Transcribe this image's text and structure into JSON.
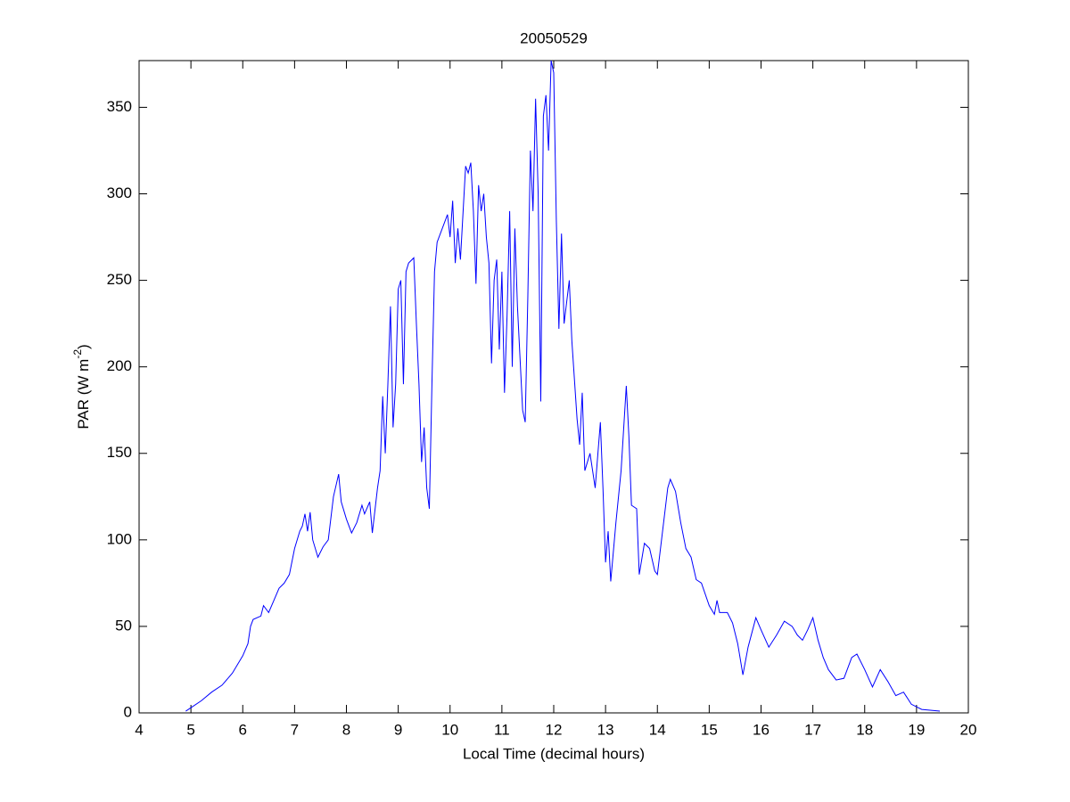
{
  "chart_data": {
    "type": "line",
    "title": "20050529",
    "x_label": "Local Time (decimal hours)",
    "y_label": [
      "PAR (W m",
      "-2",
      ")"
    ],
    "x": [
      4.9,
      5.0,
      5.2,
      5.4,
      5.6,
      5.8,
      6.0,
      6.1,
      6.15,
      6.2,
      6.35,
      6.4,
      6.5,
      6.6,
      6.7,
      6.8,
      6.9,
      7.0,
      7.1,
      7.15,
      7.2,
      7.25,
      7.3,
      7.35,
      7.45,
      7.55,
      7.65,
      7.75,
      7.85,
      7.9,
      8.0,
      8.1,
      8.2,
      8.3,
      8.35,
      8.45,
      8.5,
      8.6,
      8.65,
      8.7,
      8.75,
      8.8,
      8.85,
      8.9,
      8.95,
      9.0,
      9.05,
      9.1,
      9.15,
      9.2,
      9.3,
      9.35,
      9.4,
      9.45,
      9.5,
      9.55,
      9.6,
      9.65,
      9.7,
      9.75,
      9.85,
      9.95,
      10.0,
      10.05,
      10.1,
      10.15,
      10.2,
      10.3,
      10.35,
      10.4,
      10.45,
      10.5,
      10.55,
      10.6,
      10.65,
      10.7,
      10.75,
      10.8,
      10.85,
      10.9,
      10.95,
      11.0,
      11.05,
      11.1,
      11.15,
      11.2,
      11.25,
      11.3,
      11.4,
      11.45,
      11.5,
      11.55,
      11.6,
      11.65,
      11.7,
      11.75,
      11.8,
      11.85,
      11.9,
      11.95,
      12.0,
      12.05,
      12.1,
      12.15,
      12.2,
      12.3,
      12.35,
      12.45,
      12.5,
      12.55,
      12.6,
      12.7,
      12.8,
      12.9,
      12.95,
      13.0,
      13.05,
      13.1,
      13.2,
      13.3,
      13.4,
      13.45,
      13.5,
      13.6,
      13.65,
      13.75,
      13.85,
      13.95,
      14.0,
      14.1,
      14.2,
      14.25,
      14.35,
      14.45,
      14.55,
      14.65,
      14.75,
      14.85,
      15.0,
      15.1,
      15.15,
      15.2,
      15.35,
      15.45,
      15.55,
      15.65,
      15.75,
      15.9,
      16.0,
      16.15,
      16.3,
      16.45,
      16.6,
      16.7,
      16.8,
      16.9,
      17.0,
      17.1,
      17.2,
      17.3,
      17.45,
      17.6,
      17.75,
      17.85,
      18.0,
      18.15,
      18.3,
      18.45,
      18.6,
      18.75,
      18.9,
      19.1,
      19.45
    ],
    "series": [
      {
        "color": "#0000ff",
        "values": [
          1,
          3,
          7,
          12,
          16,
          23,
          33,
          40,
          50,
          54,
          56,
          62,
          58,
          65,
          72,
          75,
          80,
          95,
          105,
          108,
          115,
          105,
          116,
          100,
          90,
          96,
          100,
          125,
          138,
          122,
          112,
          104,
          110,
          120,
          115,
          122,
          104,
          130,
          140,
          183,
          150,
          190,
          235,
          165,
          190,
          245,
          250,
          190,
          255,
          260,
          263,
          225,
          190,
          145,
          165,
          130,
          118,
          190,
          255,
          272,
          280,
          288,
          275,
          296,
          260,
          280,
          262,
          316,
          312,
          318,
          290,
          248,
          305,
          290,
          300,
          275,
          260,
          202,
          250,
          262,
          210,
          255,
          185,
          230,
          290,
          200,
          280,
          235,
          175,
          168,
          240,
          325,
          290,
          355,
          300,
          180,
          345,
          357,
          325,
          377,
          370,
          285,
          222,
          277,
          225,
          250,
          215,
          170,
          155,
          185,
          140,
          150,
          130,
          168,
          130,
          87,
          105,
          76,
          110,
          140,
          189,
          160,
          120,
          118,
          80,
          98,
          95,
          82,
          80,
          105,
          130,
          135,
          128,
          110,
          95,
          90,
          77,
          75,
          62,
          57,
          65,
          58,
          58,
          52,
          40,
          22,
          38,
          55,
          48,
          38,
          45,
          53,
          50,
          45,
          42,
          48,
          55,
          42,
          32,
          25,
          19,
          20,
          32,
          34,
          25,
          15,
          25,
          18,
          10,
          12,
          5,
          2,
          1
        ]
      }
    ],
    "xlim": [
      4,
      20
    ],
    "xticks": [
      4,
      5,
      6,
      7,
      8,
      9,
      10,
      11,
      12,
      13,
      14,
      15,
      16,
      17,
      18,
      19,
      20
    ],
    "ylim": [
      0,
      377
    ],
    "yticks": [
      0,
      50,
      100,
      150,
      200,
      250,
      300,
      350
    ]
  }
}
